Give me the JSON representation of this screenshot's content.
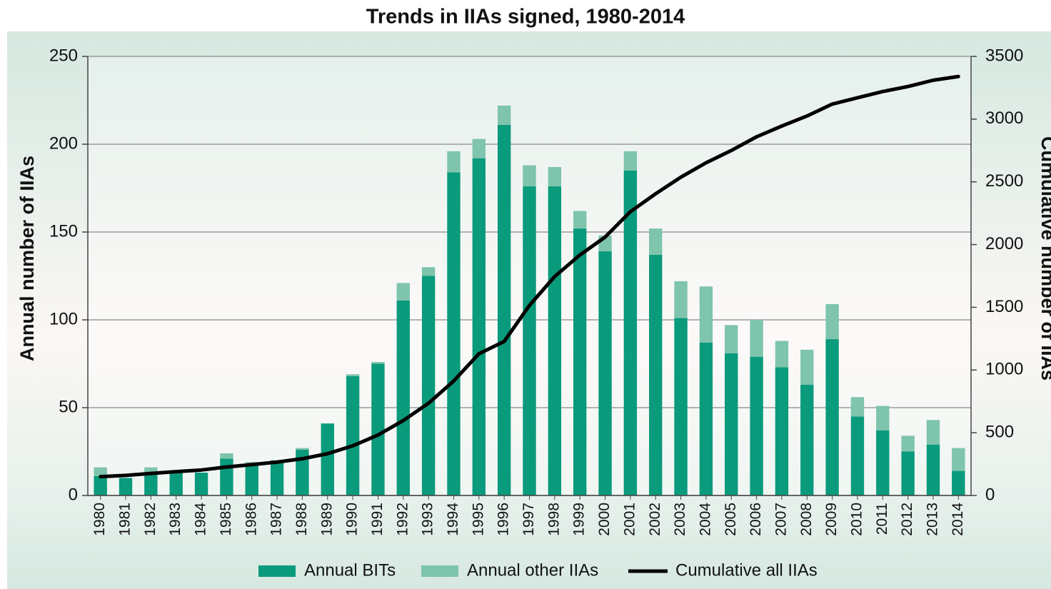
{
  "chart_data": {
    "type": "bar",
    "title": "Trends in IIAs signed, 1980-2014",
    "ylabel": "Annual number of IIAs",
    "y2label": "Cumulative number of IIAs",
    "categories": [
      "1980",
      "1981",
      "1982",
      "1983",
      "1984",
      "1985",
      "1986",
      "1987",
      "1988",
      "1989",
      "1990",
      "1991",
      "1992",
      "1993",
      "1994",
      "1995",
      "1996",
      "1997",
      "1998",
      "1999",
      "2000",
      "2001",
      "2002",
      "2003",
      "2004",
      "2005",
      "2006",
      "2007",
      "2008",
      "2009",
      "2010",
      "2011",
      "2012",
      "2013",
      "2014"
    ],
    "series": [
      {
        "name": "Annual BITs",
        "color": "#0a9a7c",
        "values": [
          11,
          10,
          13,
          14,
          13,
          21,
          18,
          20,
          26,
          41,
          68,
          75,
          111,
          125,
          184,
          192,
          211,
          176,
          176,
          152,
          139,
          185,
          137,
          101,
          87,
          81,
          79,
          73,
          63,
          89,
          45,
          37,
          25,
          29,
          14
        ]
      },
      {
        "name": "Annual other IIAs",
        "color": "#7fc4ad",
        "values": [
          5,
          0,
          3,
          0,
          0,
          3,
          1,
          0,
          1,
          0,
          1,
          1,
          10,
          5,
          12,
          11,
          11,
          12,
          11,
          10,
          9,
          11,
          15,
          21,
          32,
          16,
          21,
          15,
          20,
          20,
          11,
          14,
          9,
          14,
          13
        ]
      },
      {
        "name": "Cumulative all IIAs",
        "color": "#000000",
        "axis": "y2",
        "values": [
          150,
          160,
          176,
          190,
          203,
          227,
          246,
          266,
          293,
          333,
          396,
          482,
          597,
          735,
          913,
          1130,
          1228,
          1515,
          1745,
          1917,
          2060,
          2262,
          2405,
          2537,
          2652,
          2750,
          2859,
          2945,
          3025,
          3120,
          3170,
          3220,
          3260,
          3310,
          3340
        ]
      }
    ],
    "stacked": true,
    "grid": true,
    "ylim": [
      0,
      250
    ],
    "yticks": [
      0,
      50,
      100,
      150,
      200,
      250
    ],
    "y2lim": [
      0,
      3500
    ],
    "y2ticks": [
      0,
      500,
      1000,
      1500,
      2000,
      2500,
      3000,
      3500
    ],
    "legend": "bottom"
  }
}
